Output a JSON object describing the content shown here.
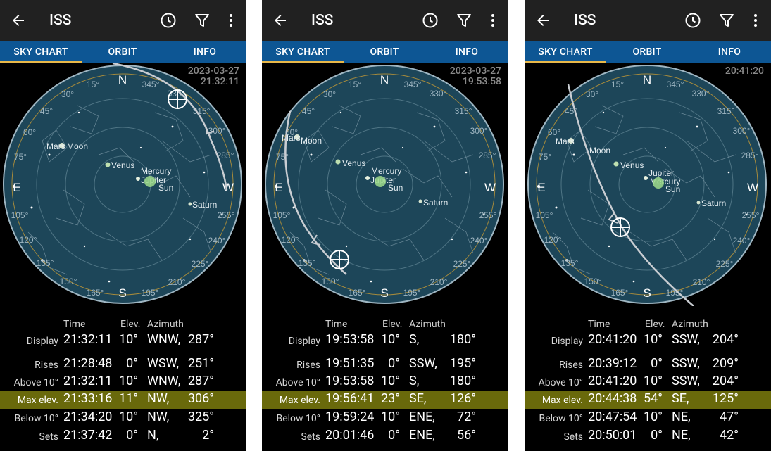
{
  "app": {
    "title": "ISS"
  },
  "tabs": [
    "SKY CHART",
    "ORBIT",
    "INFO"
  ],
  "headers": {
    "time": "Time",
    "elev": "Elev.",
    "azimuth": "Azimuth"
  },
  "labels": [
    "Display",
    "Rises",
    "Above 10°",
    "Max elev.",
    "Below 10°",
    "Sets"
  ],
  "compass": {
    "n": "N",
    "e": "E",
    "s": "S",
    "w": "W"
  },
  "bodies": {
    "mars": "Mars",
    "moon": "Moon",
    "venus": "Venus",
    "mercury": "Mercury",
    "jupiter": "Jupiter",
    "sun": "Sun",
    "saturn": "Saturn"
  },
  "colors": {
    "appbar": "#212121",
    "tabbar": "#0d5694",
    "tab_indicator": "#e8b84a",
    "sky": "#1d4659",
    "highlight": "#69690b"
  },
  "screens": [
    {
      "stamp_date": "2023-03-27",
      "stamp_time": "21:32:11",
      "rows": [
        {
          "time": "21:32:11",
          "elev": "10°",
          "dir": "WNW,",
          "az": "287°"
        },
        {
          "time": "21:28:48",
          "elev": "0°",
          "dir": "WSW,",
          "az": "251°"
        },
        {
          "time": "21:32:11",
          "elev": "10°",
          "dir": "WNW,",
          "az": "287°"
        },
        {
          "time": "21:33:16",
          "elev": "11°",
          "dir": "NW,",
          "az": "306°"
        },
        {
          "time": "21:34:20",
          "elev": "10°",
          "dir": "NW,",
          "az": "325°"
        },
        {
          "time": "21:37:42",
          "elev": "0°",
          "dir": "N,",
          "az": "2°"
        }
      ]
    },
    {
      "stamp_date": "2023-03-27",
      "stamp_time": "19:53:58",
      "rows": [
        {
          "time": "19:53:58",
          "elev": "10°",
          "dir": "S,",
          "az": "180°"
        },
        {
          "time": "19:51:35",
          "elev": "0°",
          "dir": "SSW,",
          "az": "195°"
        },
        {
          "time": "19:53:58",
          "elev": "10°",
          "dir": "S,",
          "az": "180°"
        },
        {
          "time": "19:56:41",
          "elev": "23°",
          "dir": "SE,",
          "az": "126°"
        },
        {
          "time": "19:59:24",
          "elev": "10°",
          "dir": "ENE,",
          "az": "72°"
        },
        {
          "time": "20:01:46",
          "elev": "0°",
          "dir": "ENE,",
          "az": "56°"
        }
      ]
    },
    {
      "stamp_date": "",
      "stamp_time": "20:41:20",
      "rows": [
        {
          "time": "20:41:20",
          "elev": "10°",
          "dir": "SSW,",
          "az": "204°"
        },
        {
          "time": "20:39:12",
          "elev": "0°",
          "dir": "SSW,",
          "az": "209°"
        },
        {
          "time": "20:41:20",
          "elev": "10°",
          "dir": "SSW,",
          "az": "204°"
        },
        {
          "time": "20:44:38",
          "elev": "54°",
          "dir": "SE,",
          "az": "125°"
        },
        {
          "time": "20:47:54",
          "elev": "10°",
          "dir": "NE,",
          "az": "47°"
        },
        {
          "time": "20:50:01",
          "elev": "0°",
          "dir": "NE,",
          "az": "42°"
        }
      ]
    }
  ]
}
